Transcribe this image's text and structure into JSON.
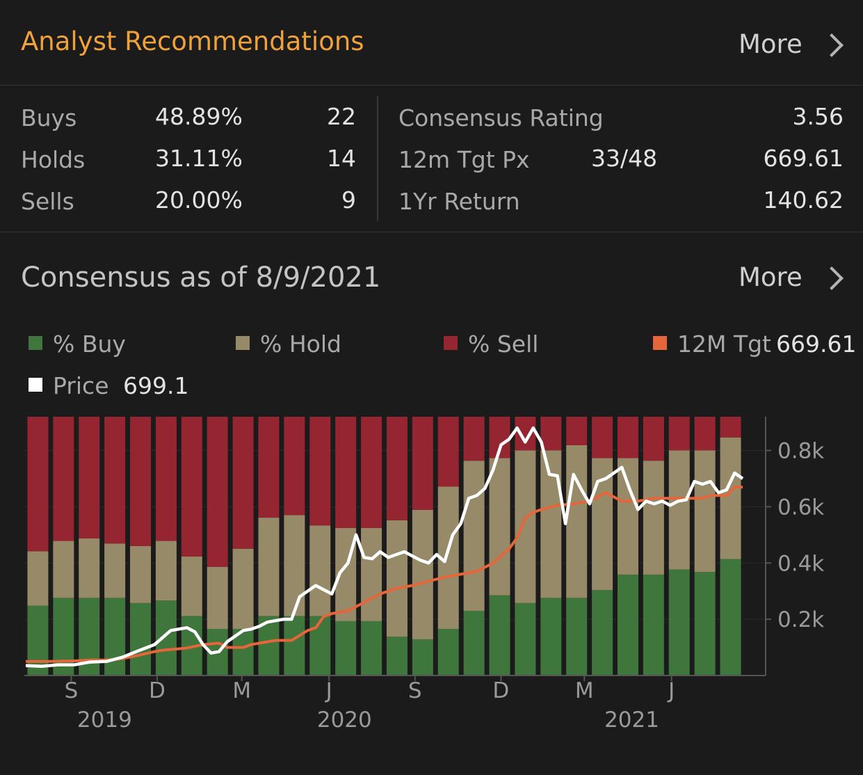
{
  "header": {
    "title": "Analyst Recommendations",
    "more_label": "More"
  },
  "stats": {
    "buys": {
      "label": "Buys",
      "percent": "48.89%",
      "count": "22"
    },
    "holds": {
      "label": "Holds",
      "percent": "31.11%",
      "count": "14"
    },
    "sells": {
      "label": "Sells",
      "percent": "20.00%",
      "count": "9"
    },
    "consensus_rating": {
      "label": "Consensus Rating",
      "value": "3.56"
    },
    "target_price": {
      "label": "12m Tgt Px",
      "ratio": "33/48",
      "value": "669.61"
    },
    "one_year_return": {
      "label": "1Yr Return",
      "value": "140.62"
    }
  },
  "consensus": {
    "title": "Consensus as of 8/9/2021",
    "more_label": "More"
  },
  "legend": {
    "buy": {
      "label": "% Buy",
      "color": "#3f763c"
    },
    "hold": {
      "label": "% Hold",
      "color": "#978a69"
    },
    "sell": {
      "label": "% Sell",
      "color": "#952530"
    },
    "target": {
      "label": "12M Tgt",
      "value": "669.61",
      "color": "#e5663a"
    },
    "price": {
      "label": "Price",
      "value": "699.1",
      "color": "#ffffff"
    }
  },
  "chart_data": {
    "type": "bar",
    "title": "Consensus as of 8/9/2021",
    "bars_note": "stacked percent of analysts (Buy / Hold / Sell) per month",
    "buy_pct": [
      27,
      30,
      30,
      30,
      28,
      29,
      23,
      18,
      18,
      23,
      23,
      23,
      21,
      21,
      15,
      14,
      18,
      25,
      31,
      28,
      30,
      30,
      33,
      39,
      39,
      41,
      40,
      45
    ],
    "hold_pct": [
      21,
      22,
      23,
      21,
      22,
      23,
      23,
      24,
      31,
      38,
      39,
      35,
      36,
      36,
      45,
      50,
      55,
      58,
      53,
      59,
      57,
      59,
      51,
      45,
      44,
      46,
      47,
      47
    ],
    "sell_pct": [
      52,
      48,
      47,
      49,
      50,
      48,
      54,
      58,
      51,
      39,
      38,
      42,
      43,
      43,
      40,
      36,
      27,
      17,
      16,
      13,
      13,
      11,
      16,
      16,
      17,
      13,
      13,
      8
    ],
    "price": [
      [
        0,
        35
      ],
      [
        2,
        33
      ],
      [
        4,
        38
      ],
      [
        6,
        38
      ],
      [
        8,
        48
      ],
      [
        10,
        50
      ],
      [
        12,
        65
      ],
      [
        14,
        88
      ],
      [
        16,
        110
      ],
      [
        18,
        160
      ],
      [
        20,
        170
      ],
      [
        21,
        155
      ],
      [
        22,
        110
      ],
      [
        23,
        80
      ],
      [
        24,
        85
      ],
      [
        25,
        120
      ],
      [
        26,
        140
      ],
      [
        27,
        160
      ],
      [
        28,
        165
      ],
      [
        29,
        175
      ],
      [
        30,
        190
      ],
      [
        31,
        195
      ],
      [
        32,
        200
      ],
      [
        33,
        200
      ],
      [
        34,
        280
      ],
      [
        35,
        300
      ],
      [
        36,
        320
      ],
      [
        37,
        305
      ],
      [
        38,
        290
      ],
      [
        39,
        365
      ],
      [
        40,
        400
      ],
      [
        41,
        500
      ],
      [
        42,
        420
      ],
      [
        43,
        415
      ],
      [
        44,
        440
      ],
      [
        45,
        420
      ],
      [
        46,
        430
      ],
      [
        47,
        440
      ],
      [
        48,
        425
      ],
      [
        49,
        410
      ],
      [
        50,
        400
      ],
      [
        51,
        430
      ],
      [
        52,
        405
      ],
      [
        53,
        500
      ],
      [
        54,
        540
      ],
      [
        55,
        630
      ],
      [
        56,
        640
      ],
      [
        57,
        665
      ],
      [
        58,
        730
      ],
      [
        59,
        820
      ],
      [
        60,
        840
      ],
      [
        61,
        880
      ],
      [
        62,
        830
      ],
      [
        63,
        880
      ],
      [
        64,
        830
      ],
      [
        65,
        715
      ],
      [
        66,
        710
      ],
      [
        67,
        540
      ],
      [
        68,
        715
      ],
      [
        69,
        660
      ],
      [
        70,
        610
      ],
      [
        71,
        690
      ],
      [
        72,
        700
      ],
      [
        73,
        720
      ],
      [
        74,
        740
      ],
      [
        75,
        660
      ],
      [
        76,
        590
      ],
      [
        77,
        620
      ],
      [
        78,
        610
      ],
      [
        79,
        620
      ],
      [
        80,
        605
      ],
      [
        81,
        620
      ],
      [
        82,
        625
      ],
      [
        83,
        690
      ],
      [
        84,
        680
      ],
      [
        85,
        690
      ],
      [
        86,
        650
      ],
      [
        87,
        660
      ],
      [
        88,
        720
      ],
      [
        89,
        700
      ]
    ],
    "target": [
      [
        0,
        50
      ],
      [
        3,
        50
      ],
      [
        6,
        52
      ],
      [
        8,
        55
      ],
      [
        10,
        55
      ],
      [
        12,
        60
      ],
      [
        14,
        72
      ],
      [
        16,
        85
      ],
      [
        17,
        90
      ],
      [
        19,
        95
      ],
      [
        20,
        98
      ],
      [
        22,
        110
      ],
      [
        24,
        115
      ],
      [
        25,
        100
      ],
      [
        27,
        100
      ],
      [
        28,
        110
      ],
      [
        31,
        125
      ],
      [
        33,
        125
      ],
      [
        35,
        160
      ],
      [
        36,
        170
      ],
      [
        37,
        210
      ],
      [
        38,
        220
      ],
      [
        40,
        230
      ],
      [
        42,
        260
      ],
      [
        44,
        290
      ],
      [
        46,
        310
      ],
      [
        48,
        320
      ],
      [
        50,
        335
      ],
      [
        52,
        350
      ],
      [
        54,
        360
      ],
      [
        56,
        370
      ],
      [
        58,
        400
      ],
      [
        60,
        450
      ],
      [
        61,
        490
      ],
      [
        62,
        560
      ],
      [
        63,
        580
      ],
      [
        64,
        590
      ],
      [
        66,
        605
      ],
      [
        68,
        610
      ],
      [
        70,
        620
      ],
      [
        72,
        650
      ],
      [
        74,
        620
      ],
      [
        76,
        620
      ],
      [
        78,
        630
      ],
      [
        80,
        630
      ],
      [
        82,
        630
      ],
      [
        84,
        630
      ],
      [
        85,
        640
      ],
      [
        86,
        640
      ],
      [
        87,
        640
      ],
      [
        88,
        670
      ],
      [
        89,
        669.61
      ]
    ],
    "ylim": [
      0,
      920
    ],
    "y_ticks": [
      {
        "value": 200,
        "label": "0.2k"
      },
      {
        "value": 400,
        "label": "0.4k"
      },
      {
        "value": 600,
        "label": "0.6k"
      },
      {
        "value": 800,
        "label": "0.8k"
      }
    ],
    "x_ticks": [
      {
        "label": "S",
        "bar": 1.3
      },
      {
        "label": "D",
        "bar": 4.65
      },
      {
        "label": "M",
        "bar": 7.95
      },
      {
        "label": "J",
        "bar": 11.35
      },
      {
        "label": "S",
        "bar": 14.7
      },
      {
        "label": "D",
        "bar": 18.05
      },
      {
        "label": "M",
        "bar": 21.3
      },
      {
        "label": "J",
        "bar": 24.7
      }
    ],
    "years": [
      {
        "label": "2019",
        "bar": 2.6
      },
      {
        "label": "2020",
        "bar": 11.95
      },
      {
        "label": "2021",
        "bar": 23.15
      }
    ]
  }
}
